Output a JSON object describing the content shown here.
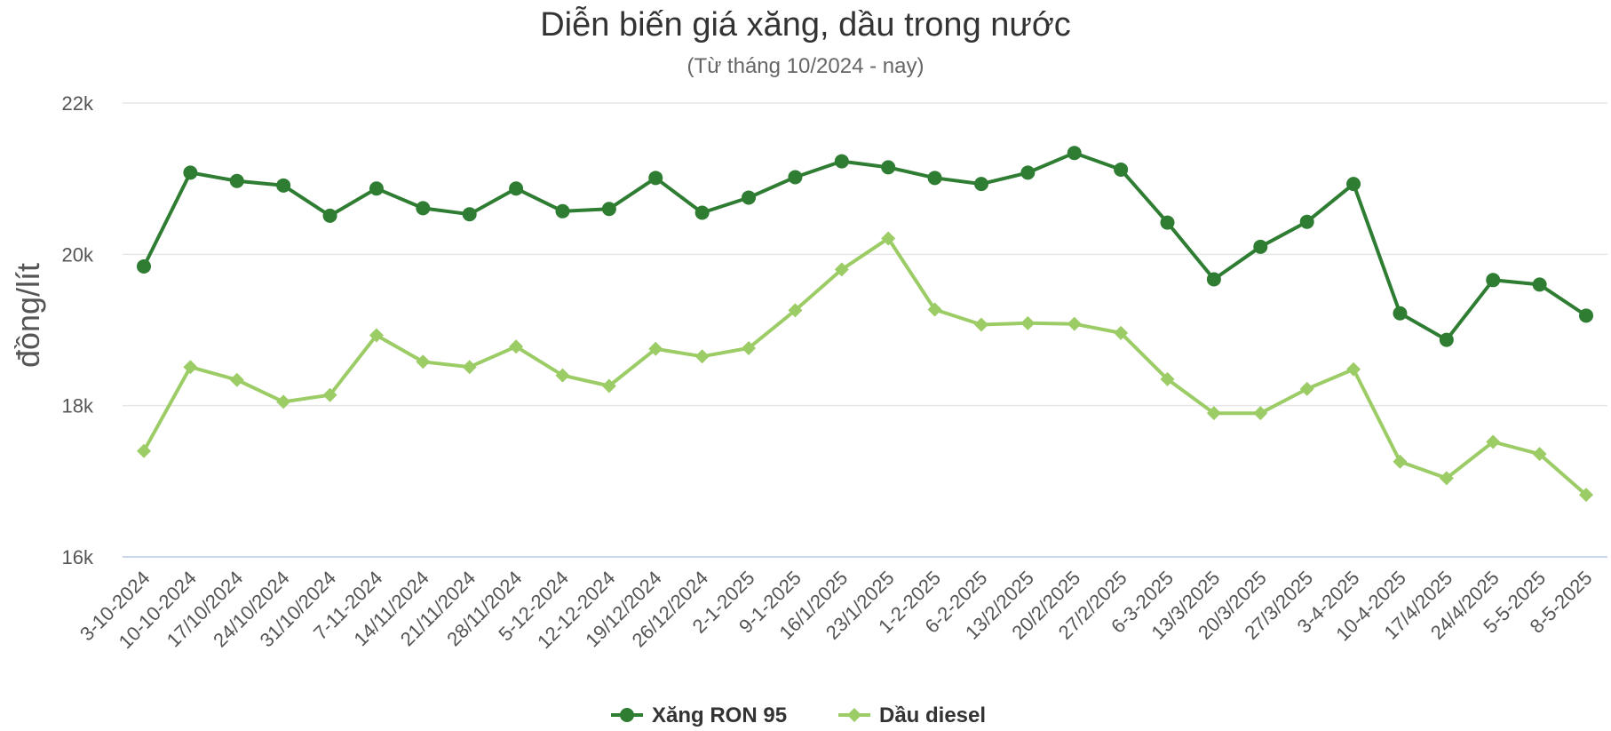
{
  "chart_data": {
    "type": "line",
    "title": "Diễn biến giá xăng, dầu trong nước",
    "subtitle": "(Từ tháng 10/2024 - nay)",
    "ylabel": "đồng/lít",
    "xlabel": "",
    "ylim": [
      16000,
      22000
    ],
    "yticks": [
      16000,
      18000,
      20000,
      22000
    ],
    "ytick_labels": [
      "16k",
      "18k",
      "20k",
      "22k"
    ],
    "grid": true,
    "legend_position": "bottom",
    "categories": [
      "3-10-2024",
      "10-10-2024",
      "17/10/2024",
      "24/10/2024",
      "31/10/2024",
      "7-11-2024",
      "14/11/2024",
      "21/11/2024",
      "28/11/2024",
      "5-12-2024",
      "12-12-2024",
      "19/12/2024",
      "26/12/2024",
      "2-1-2025",
      "9-1-2025",
      "16/1/2025",
      "23/1/2025",
      "1-2-2025",
      "6-2-2025",
      "13/2/2025",
      "20/2/2025",
      "27/2/2025",
      "6-3-2025",
      "13/3/2025",
      "20/3/2025",
      "27/3/2025",
      "3-4-2025",
      "10-4-2025",
      "17/4/2025",
      "24/4/2025",
      "5-5-2025",
      "8-5-2025"
    ],
    "series": [
      {
        "name": "Xăng RON 95",
        "color": "#2e7d32",
        "marker": "circle",
        "values": [
          19840,
          21080,
          20970,
          20910,
          20510,
          20870,
          20610,
          20530,
          20870,
          20570,
          20600,
          21010,
          20550,
          20750,
          21020,
          21230,
          21150,
          21010,
          20930,
          21080,
          21340,
          21120,
          20420,
          19670,
          20100,
          20430,
          20930,
          19220,
          18870,
          19660,
          19600,
          19190
        ]
      },
      {
        "name": "Dầu diesel",
        "color": "#9ccc65",
        "marker": "diamond",
        "values": [
          17400,
          18510,
          18340,
          18050,
          18140,
          18930,
          18580,
          18510,
          18780,
          18400,
          18260,
          18750,
          18650,
          18760,
          19260,
          19800,
          20210,
          19270,
          19070,
          19090,
          19080,
          18960,
          18350,
          17900,
          17900,
          18220,
          18480,
          17260,
          17040,
          17520,
          17360,
          16820
        ]
      }
    ]
  }
}
